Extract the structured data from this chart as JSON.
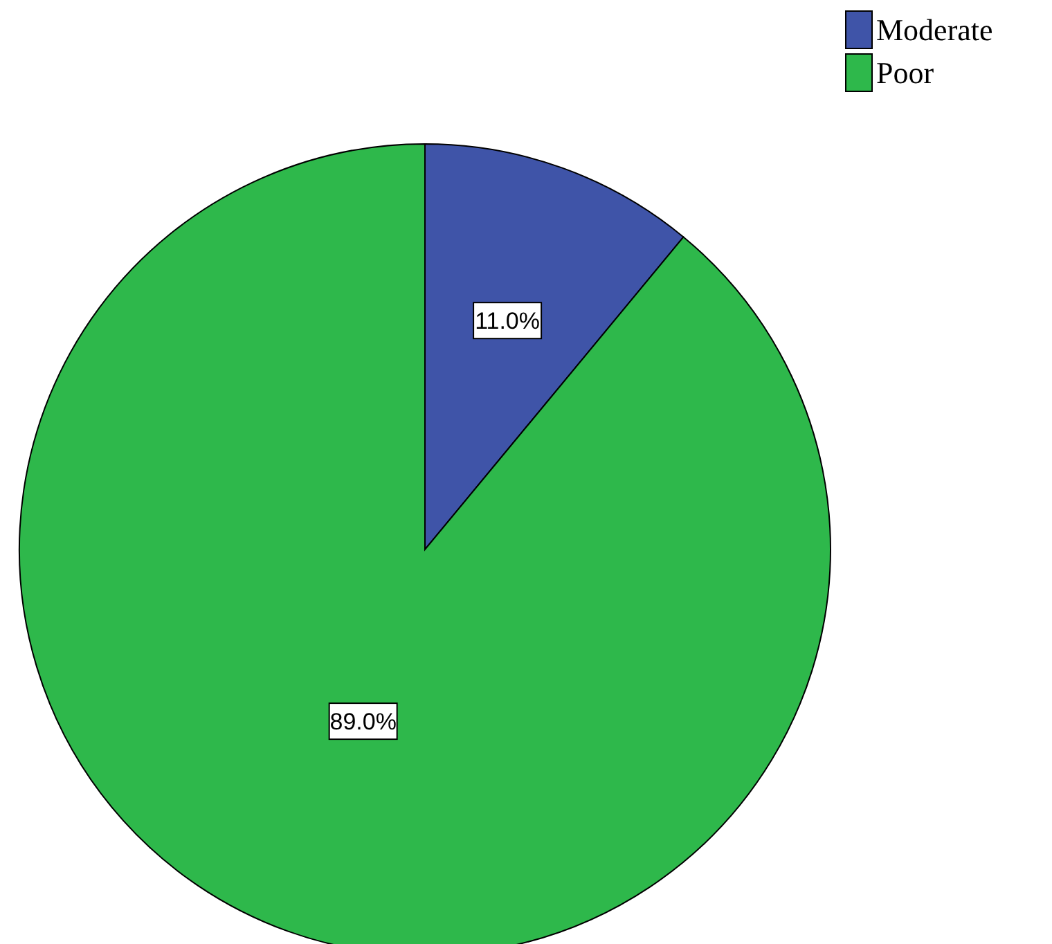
{
  "chart_data": {
    "type": "pie",
    "categories": [
      "Moderate",
      "Poor"
    ],
    "values": [
      11.0,
      89.0
    ],
    "colors": [
      "#3f54a8",
      "#2eb84b"
    ],
    "value_labels": [
      "11.0%",
      "89.0%"
    ],
    "legend": "top right"
  }
}
